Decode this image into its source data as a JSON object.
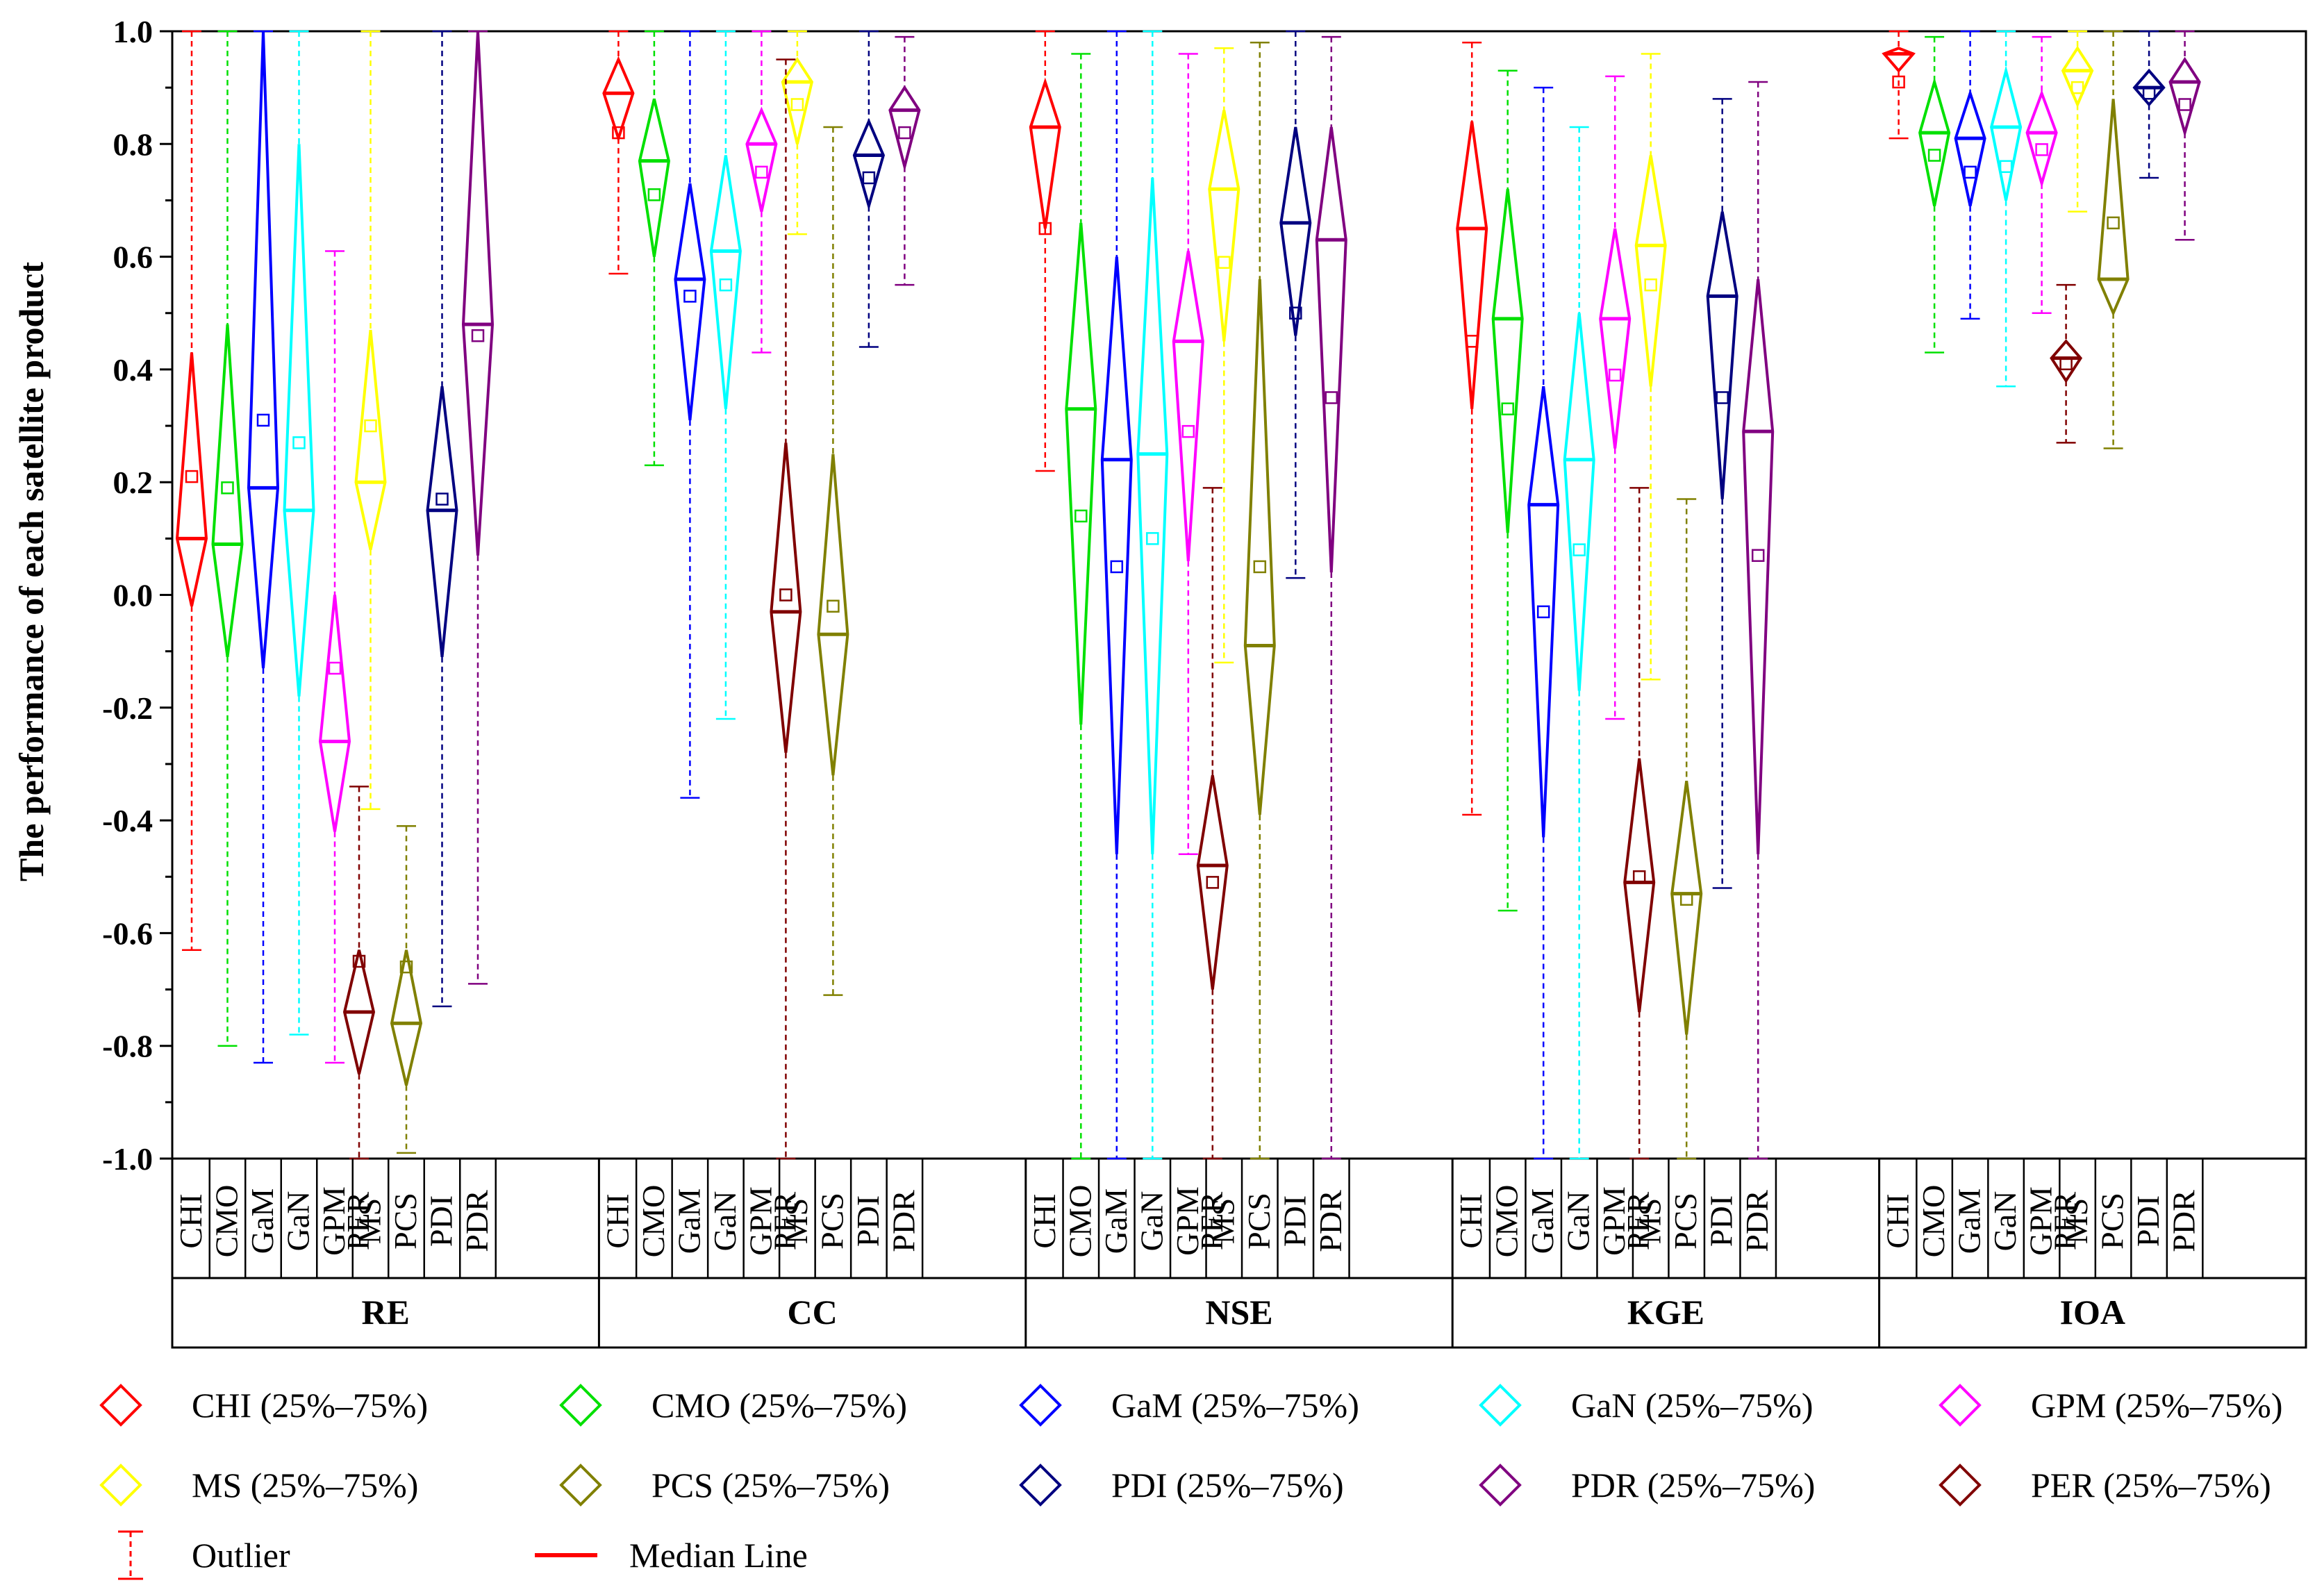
{
  "chart_data": {
    "type": "box-diamond",
    "ylabel": "The performance of each satellite product",
    "ylim": [
      -1.0,
      1.0
    ],
    "yticks": [
      "-1.0",
      "-0.8",
      "-0.6",
      "-0.4",
      "-0.2",
      "0.0",
      "0.2",
      "0.4",
      "0.6",
      "0.8",
      "1.0"
    ],
    "yminor_step": 0.1,
    "products": [
      "CHI",
      "CMO",
      "GaM",
      "GaN",
      "GPM",
      "MS",
      "PCS",
      "PDI",
      "PDR",
      "PER"
    ],
    "colors": {
      "CHI": "#ff0000",
      "CMO": "#00e000",
      "GaM": "#0000ff",
      "GaN": "#00ffff",
      "GPM": "#ff00ff",
      "MS": "#ffff00",
      "PCS": "#808000",
      "PDI": "#000080",
      "PDR": "#800080",
      "PER": "#800000"
    },
    "groups": [
      {
        "name": "RE",
        "boxes": {
          "CHI": {
            "min": -0.63,
            "q1": -0.02,
            "median": 0.1,
            "mean": 0.21,
            "q3": 0.43,
            "max": 1.0
          },
          "CMO": {
            "min": -0.8,
            "q1": -0.11,
            "median": 0.09,
            "mean": 0.19,
            "q3": 0.48,
            "max": 1.0
          },
          "GaM": {
            "min": -0.83,
            "q1": -0.13,
            "median": 0.19,
            "mean": 0.31,
            "q3": 1.0,
            "max": 1.0
          },
          "GaN": {
            "min": -0.78,
            "q1": -0.18,
            "median": 0.15,
            "mean": 0.27,
            "q3": 0.8,
            "max": 1.0
          },
          "GPM": {
            "min": -0.83,
            "q1": -0.42,
            "median": -0.26,
            "mean": -0.13,
            "q3": 0.0,
            "max": 0.61
          },
          "MS": {
            "min": -0.38,
            "q1": 0.08,
            "median": 0.2,
            "mean": 0.3,
            "q3": 0.47,
            "max": 1.0
          },
          "PCS": {
            "min": -0.99,
            "q1": -0.87,
            "median": -0.76,
            "mean": -0.66,
            "q3": -0.63,
            "max": -0.41
          },
          "PDI": {
            "min": -0.73,
            "q1": -0.11,
            "median": 0.15,
            "mean": 0.17,
            "q3": 0.37,
            "max": 1.0
          },
          "PDR": {
            "min": -0.69,
            "q1": 0.07,
            "median": 0.48,
            "mean": 0.46,
            "q3": 1.0,
            "max": 1.0
          },
          "PER": {
            "min": -1.0,
            "q1": -0.85,
            "median": -0.74,
            "mean": -0.65,
            "q3": -0.63,
            "max": -0.34
          }
        }
      },
      {
        "name": "CC",
        "boxes": {
          "CHI": {
            "min": 0.57,
            "q1": 0.81,
            "median": 0.89,
            "mean": 0.82,
            "q3": 0.95,
            "max": 1.0
          },
          "CMO": {
            "min": 0.23,
            "q1": 0.6,
            "median": 0.77,
            "mean": 0.71,
            "q3": 0.88,
            "max": 1.0
          },
          "GaM": {
            "min": -0.36,
            "q1": 0.31,
            "median": 0.56,
            "mean": 0.53,
            "q3": 0.73,
            "max": 1.0
          },
          "GaN": {
            "min": -0.22,
            "q1": 0.33,
            "median": 0.61,
            "mean": 0.55,
            "q3": 0.78,
            "max": 1.0
          },
          "GPM": {
            "min": 0.43,
            "q1": 0.68,
            "median": 0.8,
            "mean": 0.75,
            "q3": 0.86,
            "max": 1.0
          },
          "MS": {
            "min": 0.64,
            "q1": 0.8,
            "median": 0.91,
            "mean": 0.87,
            "q3": 0.95,
            "max": 1.0
          },
          "PCS": {
            "min": -0.71,
            "q1": -0.32,
            "median": -0.07,
            "mean": -0.02,
            "q3": 0.25,
            "max": 0.83
          },
          "PDI": {
            "min": 0.44,
            "q1": 0.69,
            "median": 0.78,
            "mean": 0.74,
            "q3": 0.84,
            "max": 1.0
          },
          "PDR": {
            "min": 0.55,
            "q1": 0.76,
            "median": 0.86,
            "mean": 0.82,
            "q3": 0.9,
            "max": 0.99
          },
          "PER": {
            "min": -1.0,
            "q1": -0.28,
            "median": -0.03,
            "mean": 0.0,
            "q3": 0.27,
            "max": 0.95
          }
        }
      },
      {
        "name": "NSE",
        "boxes": {
          "CHI": {
            "min": 0.22,
            "q1": 0.65,
            "median": 0.83,
            "mean": 0.65,
            "q3": 0.91,
            "max": 1.0
          },
          "CMO": {
            "min": -1.0,
            "q1": -0.23,
            "median": 0.33,
            "mean": 0.14,
            "q3": 0.66,
            "max": 0.96
          },
          "GaM": {
            "min": -1.0,
            "q1": -0.46,
            "median": 0.24,
            "mean": 0.05,
            "q3": 0.6,
            "max": 1.0
          },
          "GaN": {
            "min": -1.0,
            "q1": -0.46,
            "median": 0.25,
            "mean": 0.1,
            "q3": 0.74,
            "max": 1.0
          },
          "GPM": {
            "min": -0.46,
            "q1": 0.06,
            "median": 0.45,
            "mean": 0.29,
            "q3": 0.61,
            "max": 0.96
          },
          "MS": {
            "min": -0.12,
            "q1": 0.45,
            "median": 0.72,
            "mean": 0.59,
            "q3": 0.86,
            "max": 0.97
          },
          "PCS": {
            "min": -1.0,
            "q1": -0.39,
            "median": -0.09,
            "mean": 0.05,
            "q3": 0.56,
            "max": 0.98
          },
          "PDI": {
            "min": 0.03,
            "q1": 0.46,
            "median": 0.66,
            "mean": 0.5,
            "q3": 0.83,
            "max": 1.0
          },
          "PDR": {
            "min": -1.0,
            "q1": 0.04,
            "median": 0.63,
            "mean": 0.35,
            "q3": 0.83,
            "max": 0.99
          },
          "PER": {
            "min": -1.0,
            "q1": -0.7,
            "median": -0.48,
            "mean": -0.51,
            "q3": -0.32,
            "max": 0.19
          }
        }
      },
      {
        "name": "KGE",
        "boxes": {
          "CHI": {
            "min": -0.39,
            "q1": 0.33,
            "median": 0.65,
            "mean": 0.45,
            "q3": 0.84,
            "max": 0.98
          },
          "CMO": {
            "min": -0.56,
            "q1": 0.11,
            "median": 0.49,
            "mean": 0.33,
            "q3": 0.72,
            "max": 0.93
          },
          "GaM": {
            "min": -1.0,
            "q1": -0.43,
            "median": 0.16,
            "mean": -0.03,
            "q3": 0.37,
            "max": 0.9
          },
          "GaN": {
            "min": -1.0,
            "q1": -0.17,
            "median": 0.24,
            "mean": 0.08,
            "q3": 0.5,
            "max": 0.83
          },
          "GPM": {
            "min": -0.22,
            "q1": 0.26,
            "median": 0.49,
            "mean": 0.39,
            "q3": 0.65,
            "max": 0.92
          },
          "MS": {
            "min": -0.15,
            "q1": 0.37,
            "median": 0.62,
            "mean": 0.55,
            "q3": 0.78,
            "max": 0.96
          },
          "PCS": {
            "min": -1.0,
            "q1": -0.78,
            "median": -0.53,
            "mean": -0.54,
            "q3": -0.33,
            "max": 0.17
          },
          "PDI": {
            "min": -0.52,
            "q1": 0.17,
            "median": 0.53,
            "mean": 0.35,
            "q3": 0.68,
            "max": 0.88
          },
          "PDR": {
            "min": -1.0,
            "q1": -0.46,
            "median": 0.29,
            "mean": 0.07,
            "q3": 0.56,
            "max": 0.91
          },
          "PER": {
            "min": -1.0,
            "q1": -0.74,
            "median": -0.51,
            "mean": -0.5,
            "q3": -0.29,
            "max": 0.19
          }
        }
      },
      {
        "name": "IOA",
        "boxes": {
          "CHI": {
            "min": 0.81,
            "q1": 0.93,
            "median": 0.96,
            "mean": 0.91,
            "q3": 0.97,
            "max": 1.0
          },
          "CMO": {
            "min": 0.43,
            "q1": 0.69,
            "median": 0.82,
            "mean": 0.78,
            "q3": 0.91,
            "max": 0.99
          },
          "GaM": {
            "min": 0.49,
            "q1": 0.69,
            "median": 0.81,
            "mean": 0.75,
            "q3": 0.89,
            "max": 1.0
          },
          "GaN": {
            "min": 0.37,
            "q1": 0.7,
            "median": 0.83,
            "mean": 0.76,
            "q3": 0.93,
            "max": 1.0
          },
          "GPM": {
            "min": 0.5,
            "q1": 0.73,
            "median": 0.82,
            "mean": 0.79,
            "q3": 0.89,
            "max": 0.99
          },
          "MS": {
            "min": 0.68,
            "q1": 0.87,
            "median": 0.93,
            "mean": 0.9,
            "q3": 0.97,
            "max": 1.0
          },
          "PCS": {
            "min": 0.26,
            "q1": 0.5,
            "median": 0.56,
            "mean": 0.66,
            "q3": 0.88,
            "max": 1.0
          },
          "PDI": {
            "min": 0.74,
            "q1": 0.87,
            "median": 0.9,
            "mean": 0.89,
            "q3": 0.93,
            "max": 1.0
          },
          "PDR": {
            "min": 0.63,
            "q1": 0.82,
            "median": 0.91,
            "mean": 0.87,
            "q3": 0.95,
            "max": 1.0
          },
          "PER": {
            "min": 0.27,
            "q1": 0.38,
            "median": 0.42,
            "mean": 0.41,
            "q3": 0.45,
            "max": 0.55
          }
        }
      }
    ],
    "legend": {
      "placement": "bottom",
      "items": [
        {
          "product": "CHI",
          "label": "CHI (25%–75%)"
        },
        {
          "product": "CMO",
          "label": "CMO (25%–75%)"
        },
        {
          "product": "GaM",
          "label": "GaM (25%–75%)"
        },
        {
          "product": "GaN",
          "label": "GaN (25%–75%)"
        },
        {
          "product": "GPM",
          "label": "GPM (25%–75%)"
        },
        {
          "product": "MS",
          "label": "MS (25%–75%)"
        },
        {
          "product": "PCS",
          "label": "PCS (25%–75%)"
        },
        {
          "product": "PDI",
          "label": "PDI (25%–75%)"
        },
        {
          "product": "PDR",
          "label": "PDR (25%–75%)"
        },
        {
          "product": "PER",
          "label": "PER (25%–75%)"
        }
      ],
      "outlier_label": "Outlier",
      "median_label": "Median Line"
    }
  }
}
